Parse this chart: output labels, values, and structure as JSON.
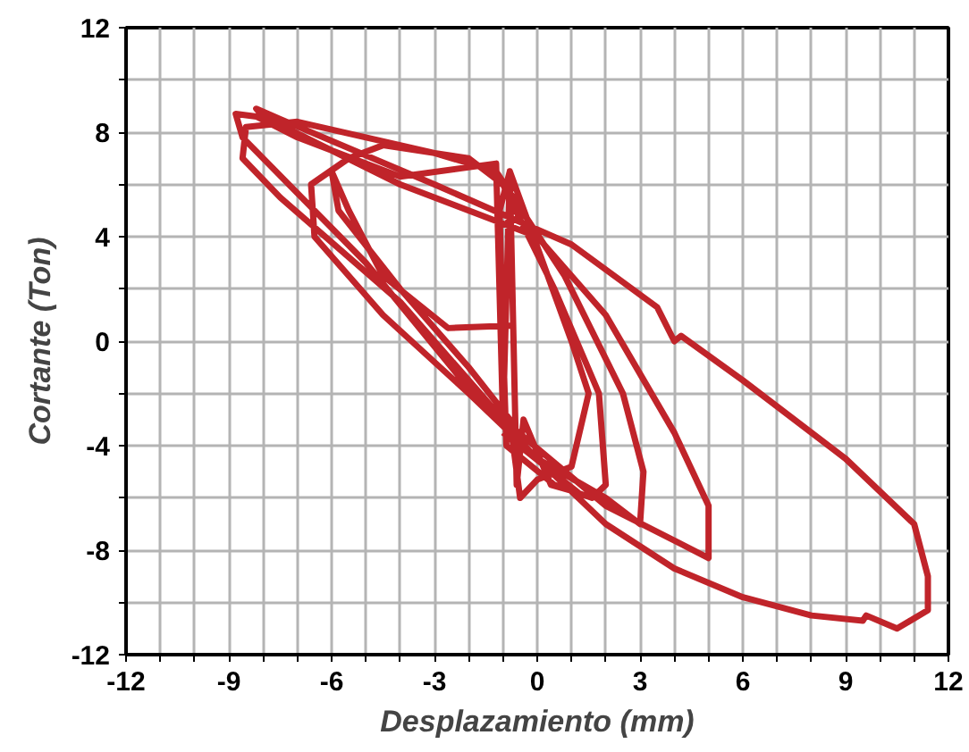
{
  "chart_data": {
    "type": "line",
    "xlabel": "Desplazamiento (mm)",
    "ylabel": "Cortante (Ton)",
    "xlim": [
      -12,
      12
    ],
    "ylim": [
      -12,
      12
    ],
    "xticks": [
      -12,
      {
        "value": -11,
        "label": null
      },
      {
        "value": -10,
        "label": null
      },
      -9,
      {
        "value": -8,
        "label": null
      },
      {
        "value": -7,
        "label": null
      },
      -6,
      {
        "value": -5,
        "label": null
      },
      {
        "value": -4,
        "label": null
      },
      -3,
      {
        "value": -2,
        "label": null
      },
      {
        "value": -1,
        "label": null
      },
      0,
      {
        "value": 1,
        "label": null
      },
      {
        "value": 2,
        "label": null
      },
      3,
      {
        "value": 4,
        "label": null
      },
      {
        "value": 5,
        "label": null
      },
      6,
      {
        "value": 7,
        "label": null
      },
      {
        "value": 8,
        "label": null
      },
      9,
      {
        "value": 10,
        "label": null
      },
      {
        "value": 11,
        "label": null
      },
      12
    ],
    "yticks": [
      -12,
      {
        "value": -10,
        "label": null
      },
      -8,
      {
        "value": -6,
        "label": null
      },
      -4,
      {
        "value": -2,
        "label": null
      },
      0,
      {
        "value": 2,
        "label": null
      },
      4,
      {
        "value": 6,
        "label": null
      },
      8,
      {
        "value": 10,
        "label": null
      },
      12
    ],
    "grid": true,
    "marker": "none",
    "line_style": "solid",
    "series": [
      {
        "color": "#c0242a",
        "x": [
          -0.7,
          -2.6,
          -4.5,
          -5.5,
          -6,
          -5.8,
          -4,
          -2,
          -0.8,
          -0.5,
          0,
          1,
          1.5,
          1,
          -0.8,
          -1.1,
          -1,
          -0.9,
          0.5,
          1.6,
          2,
          1.8,
          0.5,
          -1,
          -2,
          -4.5,
          -5.5,
          -6.6,
          -6.5,
          -4.5,
          -2,
          0,
          2,
          3,
          3.1,
          2.5,
          0.8,
          -1.2,
          -3,
          -7,
          -8.5,
          -8.6,
          -7.5,
          -4,
          -1,
          2,
          5,
          5,
          4,
          2,
          0,
          -4,
          -8,
          -8.2,
          -7.5,
          -3,
          1,
          3.5,
          4,
          4.2,
          6,
          9,
          11,
          11.4,
          11.4,
          10.5,
          9.6,
          9.5,
          8,
          6,
          4,
          2,
          0,
          -2,
          -5,
          -8.6,
          -8.8,
          -8.2,
          -7,
          -4,
          -1.2,
          -1.0,
          -0.8,
          -0.6,
          -0.4,
          0.4,
          1.2,
          -1.0
        ],
        "values": [
          0.6,
          0.5,
          2.5,
          5,
          6.5,
          5,
          2,
          -1,
          -3,
          -6,
          -5.3,
          -4.8,
          -2,
          0,
          6.5,
          5,
          0,
          -4,
          -5.5,
          -6,
          -5.5,
          -2,
          2,
          6,
          7,
          7.5,
          7,
          6,
          4,
          1,
          -2,
          -4.5,
          -6,
          -7,
          -5,
          -2,
          2.5,
          6.5,
          7.2,
          8.4,
          8.2,
          7,
          5.5,
          1.5,
          -3,
          -6.3,
          -8.3,
          -6.3,
          -3.5,
          1,
          4,
          6,
          8.6,
          8.9,
          8.5,
          6,
          3.7,
          1.3,
          0,
          0.2,
          -1.5,
          -4.5,
          -7,
          -9,
          -10.3,
          -11,
          -10.5,
          -10.7,
          -10.5,
          -9.8,
          -8.7,
          -7,
          -4.5,
          -1.8,
          3,
          7.8,
          8.7,
          8.6,
          7.8,
          6.3,
          6.8,
          -3,
          6.5,
          -5.5,
          -3,
          -5.5,
          -5.8,
          -3.5
        ]
      }
    ]
  }
}
